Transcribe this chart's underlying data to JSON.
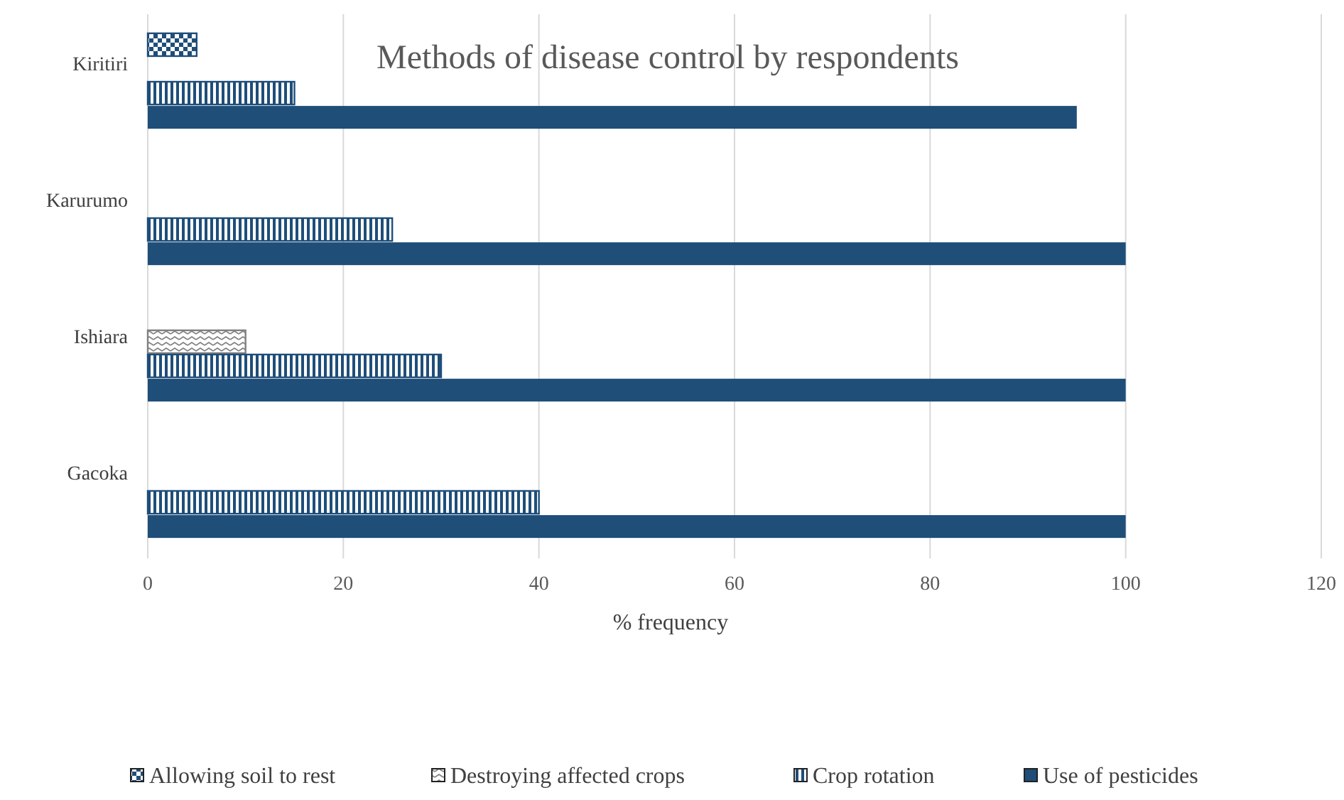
{
  "chart_data": {
    "type": "bar",
    "orientation": "horizontal",
    "title": "Methods of disease control by respondents",
    "xlabel": "% frequency",
    "categories": [
      "Kiritiri",
      "Karurumo",
      "Ishiara",
      "Gacoka"
    ],
    "series": [
      {
        "name": "Allowing soil to rest",
        "color": "#1f4e79",
        "values": [
          5,
          null,
          null,
          null
        ]
      },
      {
        "name": "Destroying affected crops",
        "color": "#808080",
        "values": [
          null,
          null,
          10,
          null
        ]
      },
      {
        "name": "Crop rotation",
        "color": "#1f4e79",
        "values": [
          15,
          25,
          30,
          40
        ]
      },
      {
        "name": "Use of pesticides",
        "color": "#1f4e79",
        "values": [
          95,
          100,
          100,
          100
        ]
      }
    ],
    "xlim": [
      0,
      120
    ],
    "xticks": [
      0,
      20,
      40,
      60,
      80,
      100,
      120
    ],
    "grid": "x",
    "legend": "bottom"
  }
}
